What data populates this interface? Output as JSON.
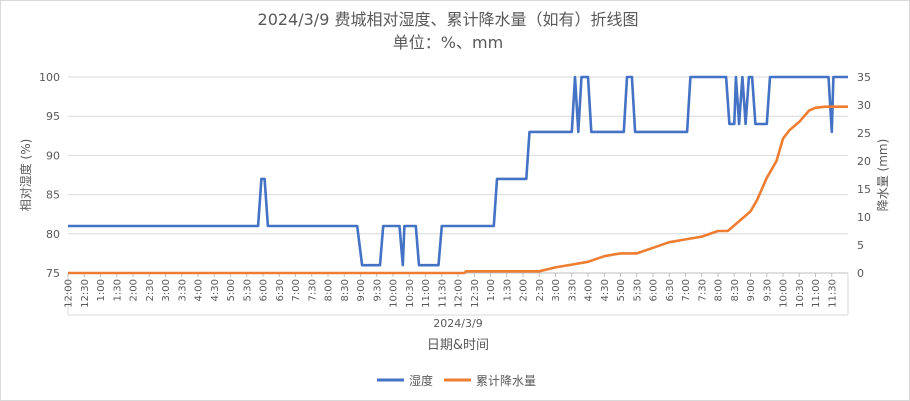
{
  "chart_data": {
    "type": "line",
    "title_line1": "2024/3/9 费城相对湿度、累计降水量（如有）折线图",
    "title_line2": "单位：%、mm",
    "xlabel_date": "2024/3/9",
    "xlabel": "日期&时间",
    "ylabel_left": "相对湿度 (%)",
    "ylabel_right": "降水量 (mm)",
    "ylim_left": [
      75,
      100
    ],
    "yticks_left": [
      "75",
      "80",
      "85",
      "90",
      "95",
      "100"
    ],
    "ylim_right": [
      0,
      35
    ],
    "yticks_right": [
      "0",
      "5",
      "10",
      "15",
      "20",
      "25",
      "30",
      "35"
    ],
    "xlim_hours": [
      12,
      36
    ],
    "xtick_labels": [
      "12:00",
      "12:30",
      "1:00",
      "1:30",
      "2:00",
      "2:30",
      "3:00",
      "3:30",
      "4:00",
      "4:30",
      "5:00",
      "5:30",
      "6:00",
      "6:30",
      "7:00",
      "7:30",
      "8:00",
      "8:30",
      "9:00",
      "9:30",
      "10:00",
      "10:30",
      "11:00",
      "11:30",
      "12:00",
      "12:30",
      "1:00",
      "1:30",
      "2:00",
      "2:30",
      "3:00",
      "3:30",
      "4:00",
      "4:30",
      "5:00",
      "5:30",
      "6:00",
      "6:30",
      "7:00",
      "7:30",
      "8:00",
      "8:30",
      "9:00",
      "9:30",
      "10:00",
      "10:30",
      "11:00",
      "11:30"
    ],
    "legend_position": "bottom",
    "grid": "horizontal",
    "series": [
      {
        "name": "湿度",
        "axis": "left",
        "color": "#4472C4",
        "points": [
          [
            12.0,
            81
          ],
          [
            17.85,
            81
          ],
          [
            17.95,
            87
          ],
          [
            18.05,
            87
          ],
          [
            18.15,
            81
          ],
          [
            20.9,
            81
          ],
          [
            21.05,
            76
          ],
          [
            21.6,
            76
          ],
          [
            21.7,
            81
          ],
          [
            22.2,
            81
          ],
          [
            22.3,
            76
          ],
          [
            22.35,
            81
          ],
          [
            22.7,
            81
          ],
          [
            22.8,
            76
          ],
          [
            23.4,
            76
          ],
          [
            23.5,
            81
          ],
          [
            25.1,
            81
          ],
          [
            25.2,
            87
          ],
          [
            26.1,
            87
          ],
          [
            26.2,
            93
          ],
          [
            27.5,
            93
          ],
          [
            27.6,
            100
          ],
          [
            27.7,
            93
          ],
          [
            27.8,
            100
          ],
          [
            28.0,
            100
          ],
          [
            28.1,
            93
          ],
          [
            29.1,
            93
          ],
          [
            29.2,
            100
          ],
          [
            29.35,
            100
          ],
          [
            29.45,
            93
          ],
          [
            31.05,
            93
          ],
          [
            31.15,
            100
          ],
          [
            32.25,
            100
          ],
          [
            32.35,
            94
          ],
          [
            32.5,
            94
          ],
          [
            32.55,
            100
          ],
          [
            32.65,
            94
          ],
          [
            32.75,
            100
          ],
          [
            32.85,
            94
          ],
          [
            32.95,
            100
          ],
          [
            33.05,
            100
          ],
          [
            33.15,
            94
          ],
          [
            33.5,
            94
          ],
          [
            33.6,
            100
          ],
          [
            35.4,
            100
          ],
          [
            35.5,
            93
          ],
          [
            35.55,
            100
          ],
          [
            36.0,
            100
          ]
        ]
      },
      {
        "name": "累计降水量",
        "axis": "right",
        "color": "#ED7D31",
        "points": [
          [
            12.0,
            0
          ],
          [
            24.2,
            0
          ],
          [
            24.25,
            0.3
          ],
          [
            26.5,
            0.3
          ],
          [
            27.0,
            1
          ],
          [
            27.5,
            1.5
          ],
          [
            28.0,
            2
          ],
          [
            28.5,
            3
          ],
          [
            29.0,
            3.5
          ],
          [
            29.5,
            3.5
          ],
          [
            30.0,
            4.5
          ],
          [
            30.5,
            5.5
          ],
          [
            31.0,
            6
          ],
          [
            31.5,
            6.5
          ],
          [
            32.0,
            7.5
          ],
          [
            32.3,
            7.5
          ],
          [
            32.5,
            8.5
          ],
          [
            33.0,
            11
          ],
          [
            33.2,
            13
          ],
          [
            33.5,
            17
          ],
          [
            33.8,
            20
          ],
          [
            34.0,
            24
          ],
          [
            34.2,
            25.5
          ],
          [
            34.5,
            27
          ],
          [
            34.8,
            29
          ],
          [
            35.0,
            29.5
          ],
          [
            35.3,
            29.7
          ],
          [
            36.0,
            29.7
          ]
        ]
      }
    ]
  }
}
